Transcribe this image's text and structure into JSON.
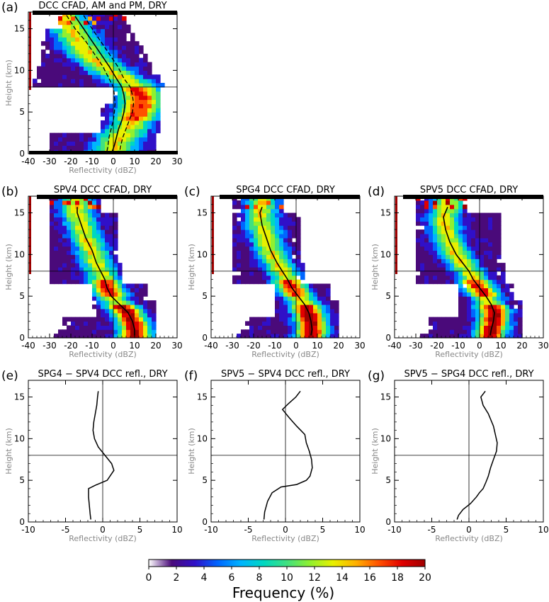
{
  "colorbar": {
    "label": "Frequency (%)",
    "ticks": [
      "0",
      "2",
      "4",
      "6",
      "8",
      "10",
      "12",
      "14",
      "16",
      "18",
      "20"
    ],
    "min": 0,
    "max": 20,
    "colors": [
      "#ffffff",
      "#4a0a7a",
      "#3010c8",
      "#0066ff",
      "#00b4ff",
      "#00d8c0",
      "#40e080",
      "#90f030",
      "#e8f000",
      "#ffb000",
      "#ff5000",
      "#e00000",
      "#a00000"
    ]
  },
  "chart_data": [
    {
      "id": "a",
      "type": "heatmap",
      "panel_label": "(a)",
      "title": "DCC CFAD, AM and PM, DRY",
      "xlabel": "Reflectivity (dBZ)",
      "ylabel": "Height (km)",
      "xlim": [
        -40,
        30
      ],
      "ylim": [
        0,
        17
      ],
      "xticks": [
        -40,
        -30,
        -20,
        -10,
        0,
        10,
        20,
        30
      ],
      "yticks": [
        0,
        5,
        10,
        15
      ],
      "ref_lines": {
        "x": 0,
        "y": 8
      },
      "cfad_ridge": [
        [
          -25,
          17.2
        ],
        [
          -21,
          15.5
        ],
        [
          -16,
          13.5
        ],
        [
          -10,
          11.5
        ],
        [
          -3,
          10.2
        ],
        [
          4,
          9.2
        ],
        [
          10,
          8.2
        ],
        [
          13,
          7
        ],
        [
          13,
          5.8
        ],
        [
          10,
          4.2
        ],
        [
          6,
          2.8
        ],
        [
          2,
          1.5
        ],
        [
          0,
          0.5
        ]
      ],
      "mean_profile": [
        [
          -18,
          16.5
        ],
        [
          -14,
          15
        ],
        [
          -10,
          13.5
        ],
        [
          -6,
          12
        ],
        [
          -2,
          10.5
        ],
        [
          1.5,
          9
        ],
        [
          4,
          8
        ],
        [
          5,
          7
        ],
        [
          5.5,
          6
        ],
        [
          5,
          5
        ],
        [
          4,
          4
        ],
        [
          2.5,
          3
        ],
        [
          1.5,
          2
        ],
        [
          0.5,
          1
        ],
        [
          -0.5,
          0.3
        ]
      ],
      "pct_low": [
        [
          -22,
          16.6
        ],
        [
          -18,
          15
        ],
        [
          -13,
          13.5
        ],
        [
          -9,
          12
        ],
        [
          -5,
          10.5
        ],
        [
          -2,
          9
        ],
        [
          0,
          8
        ],
        [
          0.5,
          7
        ],
        [
          0.8,
          6
        ],
        [
          0.5,
          5
        ],
        [
          0,
          4
        ],
        [
          -1,
          3
        ],
        [
          -2,
          2
        ],
        [
          -2.5,
          1
        ],
        [
          -3,
          0.3
        ]
      ],
      "pct_high": [
        [
          -14,
          16.6
        ],
        [
          -10,
          15
        ],
        [
          -6,
          13.5
        ],
        [
          -2,
          12
        ],
        [
          2,
          10.5
        ],
        [
          5,
          9
        ],
        [
          8,
          8
        ],
        [
          9,
          7
        ],
        [
          9.5,
          6
        ],
        [
          9,
          5
        ],
        [
          7.5,
          4
        ],
        [
          6,
          3
        ],
        [
          4.5,
          2
        ],
        [
          3.5,
          1
        ],
        [
          3,
          0.3
        ]
      ]
    },
    {
      "id": "b",
      "type": "heatmap",
      "panel_label": "(b)",
      "title": "SPV4 DCC CFAD, DRY",
      "xlabel": "Reflectivity (dBZ)",
      "ylabel": "Height (km)",
      "xlim": [
        -40,
        30
      ],
      "ylim": [
        0,
        17
      ],
      "xticks": [
        -40,
        -30,
        -20,
        -10,
        0,
        10,
        20,
        30
      ],
      "yticks": [
        0,
        5,
        10,
        15
      ],
      "ref_lines": {
        "x": 0,
        "y": 8
      },
      "mean_profile": [
        [
          -17,
          15.7
        ],
        [
          -17,
          15
        ],
        [
          -15,
          13.5
        ],
        [
          -13,
          12
        ],
        [
          -10,
          10.5
        ],
        [
          -8,
          9
        ],
        [
          -6,
          8
        ],
        [
          -4,
          7
        ],
        [
          -3,
          6
        ],
        [
          -1,
          5
        ],
        [
          3,
          4
        ],
        [
          7,
          3
        ],
        [
          9,
          2
        ],
        [
          10,
          1
        ],
        [
          10,
          0.3
        ]
      ]
    },
    {
      "id": "c",
      "type": "heatmap",
      "panel_label": "(c)",
      "title": "SPG4 DCC CFAD, DRY",
      "xlabel": "Reflectivity (dBZ)",
      "ylabel": "Height (km)",
      "xlim": [
        -40,
        30
      ],
      "ylim": [
        0,
        17
      ],
      "xticks": [
        -40,
        -30,
        -20,
        -10,
        0,
        10,
        20,
        30
      ],
      "yticks": [
        0,
        5,
        10,
        15
      ],
      "ref_lines": {
        "x": 0,
        "y": 8
      },
      "mean_profile": [
        [
          -16,
          15.7
        ],
        [
          -17,
          15
        ],
        [
          -16,
          13.5
        ],
        [
          -14,
          12
        ],
        [
          -12,
          10.5
        ],
        [
          -9,
          9
        ],
        [
          -6.5,
          8
        ],
        [
          -4,
          7
        ],
        [
          -2,
          6
        ],
        [
          1,
          5
        ],
        [
          4,
          4
        ],
        [
          6,
          3
        ],
        [
          7,
          2
        ],
        [
          7.5,
          1
        ],
        [
          7,
          0.3
        ]
      ]
    },
    {
      "id": "d",
      "type": "heatmap",
      "panel_label": "(d)",
      "title": "SPV5 DCC CFAD, DRY",
      "xlabel": "Reflectivity (dBZ)",
      "ylabel": "Height (km)",
      "xlim": [
        -40,
        30
      ],
      "ylim": [
        0,
        17
      ],
      "xticks": [
        -40,
        -30,
        -20,
        -10,
        0,
        10,
        20,
        30
      ],
      "yticks": [
        0,
        5,
        10,
        15
      ],
      "ref_lines": {
        "x": 0,
        "y": 8
      },
      "mean_profile": [
        [
          -15,
          15.7
        ],
        [
          -17,
          14.5
        ],
        [
          -16,
          13
        ],
        [
          -14,
          11.5
        ],
        [
          -11,
          10
        ],
        [
          -8,
          9
        ],
        [
          -5,
          8
        ],
        [
          -3,
          7
        ],
        [
          0,
          6
        ],
        [
          3,
          5
        ],
        [
          5.5,
          4
        ],
        [
          7,
          3
        ],
        [
          6.5,
          2
        ],
        [
          5.5,
          1
        ],
        [
          5,
          0.3
        ]
      ]
    },
    {
      "id": "e",
      "type": "line",
      "panel_label": "(e)",
      "title": "SPG4 − SPV4 DCC refl., DRY",
      "xlabel": "Reflectivity (dBZ)",
      "ylabel": "Height (km)",
      "xlim": [
        -10,
        10
      ],
      "ylim": [
        0,
        17
      ],
      "xticks": [
        -10,
        -5,
        0,
        5,
        10
      ],
      "yticks": [
        0,
        5,
        10,
        15
      ],
      "ref_lines": {
        "x": 0,
        "y": 8
      },
      "x": [
        -0.6,
        -0.7,
        -0.8,
        -1.0,
        -1.2,
        -1.3,
        -1.1,
        -0.6,
        0.3,
        1.2,
        1.5,
        0.6,
        -1.0,
        -1.9,
        -1.9,
        -1.8,
        -1.7,
        -1.6
      ],
      "y": [
        15.7,
        15,
        14,
        13,
        12,
        11,
        10,
        9,
        8,
        7,
        6.2,
        5,
        4.4,
        4,
        3,
        2,
        1,
        0.3
      ]
    },
    {
      "id": "f",
      "type": "line",
      "panel_label": "(f)",
      "title": "SPV5 − SPV4 DCC refl., DRY",
      "xlabel": "Reflectivity (dBZ)",
      "ylabel": "Height (km)",
      "xlim": [
        -10,
        10
      ],
      "ylim": [
        0,
        17
      ],
      "xticks": [
        -10,
        -5,
        0,
        5,
        10
      ],
      "yticks": [
        0,
        5,
        10,
        15
      ],
      "ref_lines": {
        "x": 0,
        "y": 8
      },
      "x": [
        2.0,
        1.4,
        0.4,
        -0.4,
        0.5,
        1.5,
        2.6,
        2.8,
        3.2,
        3.5,
        3.6,
        3.3,
        2.8,
        1.5,
        -0.6,
        -1.8,
        -2.4,
        -2.8,
        -2.9
      ],
      "y": [
        15.7,
        15,
        14.2,
        13.5,
        12.5,
        11.5,
        10.5,
        9.5,
        8.5,
        7.5,
        6.5,
        5.5,
        5,
        4.5,
        4.2,
        3.5,
        2.5,
        1.2,
        0.3
      ]
    },
    {
      "id": "g",
      "type": "line",
      "panel_label": "(g)",
      "title": "SPV5 − SPG4 DCC refl., DRY",
      "xlabel": "Reflectivity (dBZ)",
      "ylabel": "Height (km)",
      "xlim": [
        -10,
        10
      ],
      "ylim": [
        0,
        17
      ],
      "xticks": [
        -10,
        -5,
        0,
        5,
        10
      ],
      "yticks": [
        0,
        5,
        10,
        15
      ],
      "ref_lines": {
        "x": 0,
        "y": 8
      },
      "x": [
        2.2,
        1.6,
        1.9,
        2.6,
        3.3,
        3.8,
        3.7,
        3.3,
        2.9,
        2.6,
        2.3,
        1.9,
        1.4,
        1.0,
        0.2,
        -0.8,
        -1.4,
        -1.6
      ],
      "y": [
        15.7,
        15,
        14,
        13,
        11.5,
        9.5,
        8.5,
        7.5,
        6.5,
        5.5,
        4.8,
        4,
        3.5,
        3,
        2.2,
        1.5,
        0.8,
        0.3
      ]
    }
  ]
}
